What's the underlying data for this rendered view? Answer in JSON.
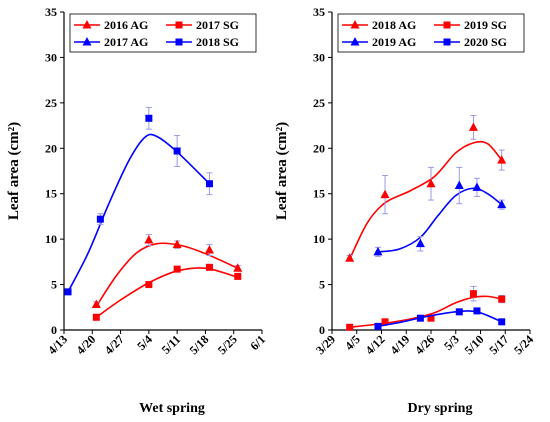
{
  "chart_data": [
    {
      "type": "line",
      "xlabel": "Wet spring",
      "ylabel": "Leaf area (cm²)",
      "ylim": [
        0,
        35
      ],
      "yticks": [
        0,
        5,
        10,
        15,
        20,
        25,
        30,
        35
      ],
      "xticks": [
        "4/13",
        "4/20",
        "4/27",
        "5/4",
        "5/11",
        "5/18",
        "5/25",
        "6/1"
      ],
      "legend_placement": "top-left",
      "series": [
        {
          "name": "2016 AG",
          "color": "#ff0000",
          "marker": "triangle",
          "points": [
            [
              "4/21",
              2.8
            ],
            [
              "5/4",
              9.9
            ],
            [
              "5/11",
              9.4
            ],
            [
              "5/19",
              8.8
            ],
            [
              "5/26",
              6.8
            ]
          ],
          "errors": [
            0.3,
            0.6,
            0.4,
            0.6,
            0.3
          ],
          "fit": [
            [
              "4/21",
              2.6
            ],
            [
              "4/26",
              6.0
            ],
            [
              "5/1",
              8.5
            ],
            [
              "5/6",
              9.5
            ],
            [
              "5/12",
              9.3
            ],
            [
              "5/18",
              8.4
            ],
            [
              "5/26",
              6.8
            ]
          ]
        },
        {
          "name": "2017 SG",
          "color": "#ff0000",
          "marker": "square",
          "points": [
            [
              "4/21",
              1.4
            ],
            [
              "5/4",
              5.0
            ],
            [
              "5/11",
              6.7
            ],
            [
              "5/19",
              6.9
            ],
            [
              "5/26",
              5.9
            ]
          ],
          "errors": [
            0.2,
            0.3,
            0.3,
            0.3,
            0.3
          ],
          "fit": [
            [
              "4/21",
              1.4
            ],
            [
              "4/27",
              3.3
            ],
            [
              "5/4",
              5.2
            ],
            [
              "5/11",
              6.5
            ],
            [
              "5/18",
              6.8
            ],
            [
              "5/26",
              5.8
            ]
          ]
        },
        {
          "name": "2017 AG",
          "color": "#0000ff",
          "marker": "triangle",
          "points": [],
          "errors": [],
          "fit": []
        },
        {
          "name": "2018 SG",
          "color": "#0000ff",
          "marker": "square",
          "points": [
            [
              "4/14",
              4.2
            ],
            [
              "4/22",
              12.2
            ],
            [
              "5/4",
              23.3
            ],
            [
              "5/11",
              19.7
            ],
            [
              "5/19",
              16.1
            ]
          ],
          "errors": [
            0.3,
            0.6,
            1.2,
            1.7,
            1.2
          ],
          "fit": [
            [
              "4/14",
              4.2
            ],
            [
              "4/19",
              8.5
            ],
            [
              "4/24",
              13.8
            ],
            [
              "4/29",
              18.6
            ],
            [
              "5/3",
              21.2
            ],
            [
              "5/6",
              21.3
            ],
            [
              "5/11",
              19.6
            ],
            [
              "5/19",
              16.1
            ]
          ]
        }
      ]
    },
    {
      "type": "line",
      "xlabel": "Dry spring",
      "ylabel": "Leaf area (cm²)",
      "ylim": [
        0,
        35
      ],
      "yticks": [
        0,
        5,
        10,
        15,
        20,
        25,
        30,
        35
      ],
      "xticks": [
        "3/29",
        "4/5",
        "4/12",
        "4/19",
        "4/26",
        "5/3",
        "5/10",
        "5/17",
        "5/24"
      ],
      "legend_placement": "top-left",
      "series": [
        {
          "name": "2018 AG",
          "color": "#ff0000",
          "marker": "triangle",
          "points": [
            [
              "4/3",
              7.9
            ],
            [
              "4/13",
              14.9
            ],
            [
              "4/26",
              16.1
            ],
            [
              "5/8",
              22.3
            ],
            [
              "5/16",
              18.7
            ]
          ],
          "errors": [
            0.3,
            2.1,
            1.8,
            1.3,
            1.1
          ],
          "fit": [
            [
              "4/3",
              7.8
            ],
            [
              "4/8",
              11.8
            ],
            [
              "4/13",
              14.0
            ],
            [
              "4/20",
              15.3
            ],
            [
              "4/27",
              16.9
            ],
            [
              "5/3",
              19.5
            ],
            [
              "5/8",
              20.6
            ],
            [
              "5/12",
              20.5
            ],
            [
              "5/16",
              18.7
            ]
          ]
        },
        {
          "name": "2019 SG",
          "color": "#ff0000",
          "marker": "square",
          "points": [
            [
              "4/3",
              0.3
            ],
            [
              "4/13",
              0.9
            ],
            [
              "4/26",
              1.3
            ],
            [
              "5/8",
              4.0
            ],
            [
              "5/16",
              3.4
            ]
          ],
          "errors": [
            0.1,
            0.2,
            0.2,
            0.8,
            0.4
          ],
          "fit": [
            [
              "4/3",
              0.3
            ],
            [
              "4/12",
              0.7
            ],
            [
              "4/20",
              1.2
            ],
            [
              "4/27",
              1.9
            ],
            [
              "5/3",
              3.0
            ],
            [
              "5/8",
              3.6
            ],
            [
              "5/12",
              3.7
            ],
            [
              "5/16",
              3.4
            ]
          ]
        },
        {
          "name": "2019 AG",
          "color": "#0000ff",
          "marker": "triangle",
          "points": [
            [
              "4/11",
              8.6
            ],
            [
              "4/23",
              9.5
            ],
            [
              "5/4",
              15.9
            ],
            [
              "5/9",
              15.7
            ],
            [
              "5/16",
              13.8
            ]
          ],
          "errors": [
            0.5,
            0.8,
            2.0,
            1.0,
            0.5
          ],
          "fit": [
            [
              "4/11",
              8.6
            ],
            [
              "4/17",
              8.9
            ],
            [
              "4/23",
              10.2
            ],
            [
              "4/28",
              12.6
            ],
            [
              "5/3",
              14.8
            ],
            [
              "5/8",
              15.6
            ],
            [
              "5/12",
              15.0
            ],
            [
              "5/16",
              13.8
            ]
          ]
        },
        {
          "name": "2020 SG",
          "color": "#0000ff",
          "marker": "square",
          "points": [
            [
              "4/11",
              0.4
            ],
            [
              "4/23",
              1.3
            ],
            [
              "5/4",
              2.0
            ],
            [
              "5/9",
              2.1
            ],
            [
              "5/16",
              0.9
            ]
          ],
          "errors": [
            0.1,
            0.2,
            0.2,
            0.2,
            0.2
          ],
          "fit": [
            [
              "4/11",
              0.4
            ],
            [
              "4/18",
              0.9
            ],
            [
              "4/25",
              1.5
            ],
            [
              "5/3",
              2.0
            ],
            [
              "5/9",
              2.0
            ],
            [
              "5/16",
              0.9
            ]
          ]
        }
      ]
    }
  ]
}
